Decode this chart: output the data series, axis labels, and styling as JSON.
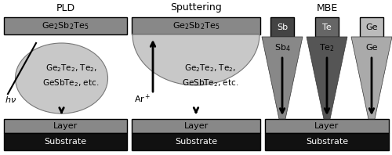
{
  "pld_title": "PLD",
  "sput_title": "Sputtering",
  "mbe_title": "MBE",
  "color_target_rect": "#888888",
  "color_layer": "#888888",
  "color_substrate": "#111111",
  "color_ellipse": "#c8c8c8",
  "color_ellipse_edge": "#777777",
  "color_semicircle": "#c8c8c8",
  "color_sb_box": "#444444",
  "color_te_box": "#666666",
  "color_ge_box": "#bbbbbb",
  "color_beam_sb": "#888888",
  "color_beam_te": "#555555",
  "color_beam_ge": "#aaaaaa"
}
